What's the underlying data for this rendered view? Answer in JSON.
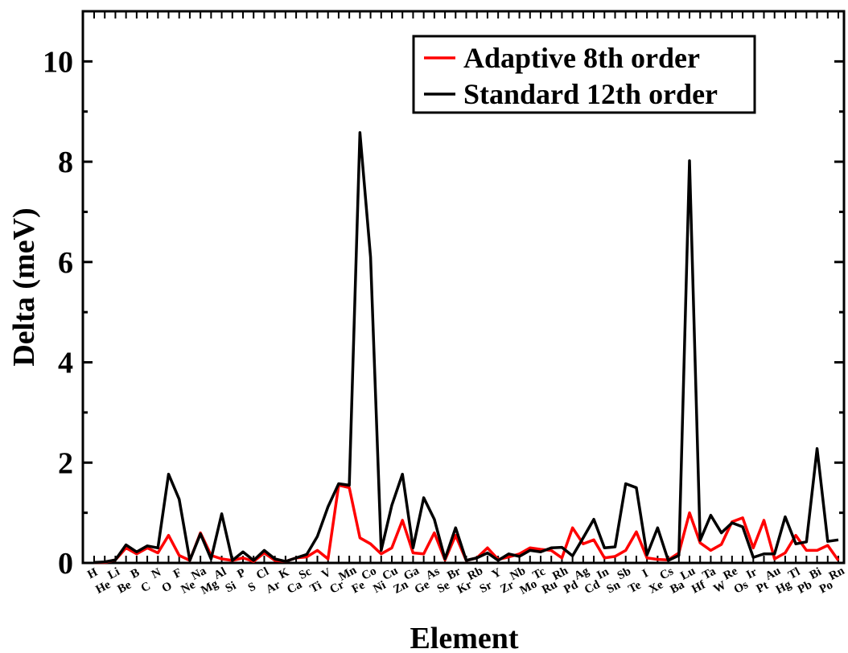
{
  "chart_data": {
    "type": "line",
    "xlabel": "Element",
    "ylabel": "Delta (meV)",
    "ylim": [
      0,
      11
    ],
    "yticks": [
      "0",
      "2",
      "4",
      "6",
      "8",
      "10"
    ],
    "yticks_values": [
      0,
      2,
      4,
      6,
      8,
      10
    ],
    "grid": false,
    "legend_position": "top-right",
    "categories": [
      "H",
      "He",
      "Li",
      "Be",
      "B",
      "C",
      "N",
      "O",
      "F",
      "Ne",
      "Na",
      "Mg",
      "Al",
      "Si",
      "P",
      "S",
      "Cl",
      "Ar",
      "K",
      "Ca",
      "Sc",
      "Ti",
      "V",
      "Cr",
      "Mn",
      "Fe",
      "Co",
      "Ni",
      "Cu",
      "Zn",
      "Ga",
      "Ge",
      "As",
      "Se",
      "Br",
      "Kr",
      "Rb",
      "Sr",
      "Y",
      "Zr",
      "Nb",
      "Mo",
      "Tc",
      "Ru",
      "Rh",
      "Pd",
      "Ag",
      "Cd",
      "In",
      "Sn",
      "Sb",
      "Te",
      "I",
      "Xe",
      "Cs",
      "Ba",
      "Lu",
      "Hf",
      "Ta",
      "W",
      "Re",
      "Os",
      "Ir",
      "Pt",
      "Au",
      "Hg",
      "Tl",
      "Pb",
      "Bi",
      "Po",
      "Rn"
    ],
    "series": [
      {
        "name": "Adaptive 8th order",
        "color": "#ff0000",
        "values": [
          0.01,
          0.01,
          0.06,
          0.3,
          0.18,
          0.3,
          0.2,
          0.55,
          0.15,
          0.05,
          0.6,
          0.15,
          0.08,
          0.05,
          0.1,
          0.03,
          0.2,
          0.05,
          0.03,
          0.1,
          0.12,
          0.25,
          0.08,
          1.55,
          1.5,
          0.5,
          0.38,
          0.18,
          0.3,
          0.85,
          0.2,
          0.18,
          0.6,
          0.06,
          0.55,
          0.05,
          0.1,
          0.3,
          0.07,
          0.12,
          0.18,
          0.3,
          0.27,
          0.25,
          0.1,
          0.7,
          0.38,
          0.46,
          0.1,
          0.13,
          0.25,
          0.62,
          0.1,
          0.07,
          0.06,
          0.2,
          1.0,
          0.4,
          0.25,
          0.37,
          0.82,
          0.9,
          0.3,
          0.85,
          0.08,
          0.2,
          0.55,
          0.25,
          0.25,
          0.35,
          0.05
        ]
      },
      {
        "name": "Standard 12th order",
        "color": "#000000",
        "values": [
          0.01,
          0.02,
          0.06,
          0.36,
          0.22,
          0.34,
          0.3,
          1.77,
          1.27,
          0.05,
          0.58,
          0.08,
          0.98,
          0.05,
          0.22,
          0.05,
          0.25,
          0.08,
          0.03,
          0.1,
          0.17,
          0.53,
          1.12,
          1.58,
          1.55,
          8.58,
          6.1,
          0.25,
          1.15,
          1.77,
          0.3,
          1.3,
          0.87,
          0.08,
          0.7,
          0.05,
          0.1,
          0.2,
          0.05,
          0.18,
          0.13,
          0.25,
          0.22,
          0.3,
          0.31,
          0.14,
          0.5,
          0.87,
          0.3,
          0.32,
          1.58,
          1.5,
          0.16,
          0.7,
          0.05,
          0.15,
          8.02,
          0.45,
          0.95,
          0.6,
          0.8,
          0.72,
          0.11,
          0.18,
          0.18,
          0.92,
          0.38,
          0.42,
          2.28,
          0.43,
          0.46
        ]
      }
    ]
  }
}
